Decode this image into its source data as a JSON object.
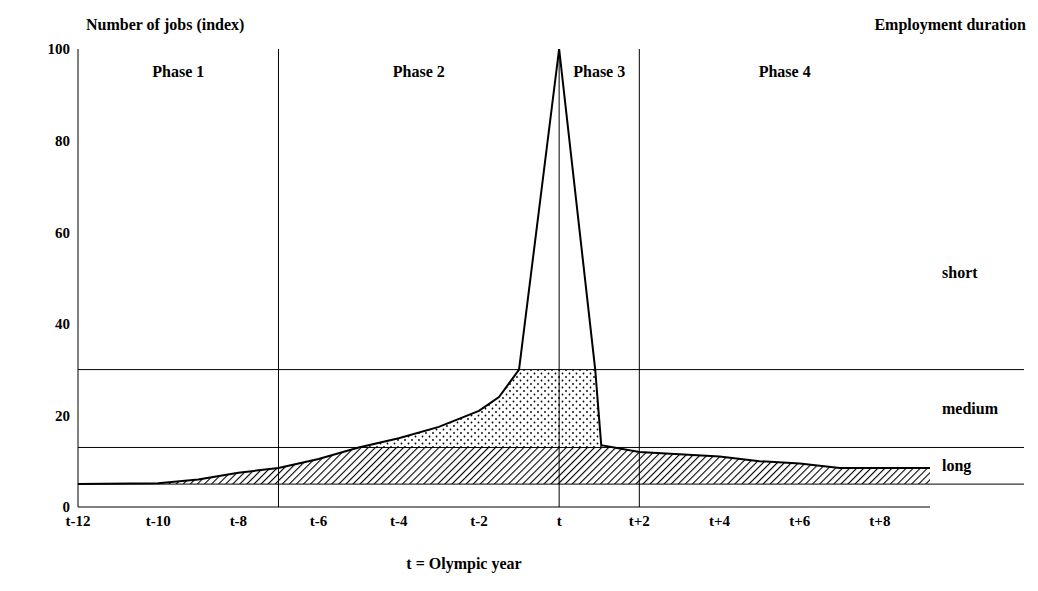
{
  "chart_data": {
    "type": "area",
    "y_label": "Number of jobs (index)",
    "x_label": "t = Olympic year",
    "band_title": "Employment duration",
    "color": "#000000",
    "x": [
      -12,
      -10,
      -9,
      -8,
      -7,
      -6,
      -5,
      -4,
      -3,
      -2,
      -1.5,
      -1,
      0,
      0.9,
      1.05,
      2,
      3,
      4,
      5,
      6,
      7,
      8,
      9.25
    ],
    "values": [
      5,
      5.2,
      6,
      7.5,
      8.5,
      10.5,
      13,
      15,
      17.5,
      21,
      24,
      30,
      100,
      30,
      13.5,
      12,
      11.5,
      11,
      10,
      9.5,
      8.5,
      8.5,
      8.5
    ],
    "xlim": [
      -12,
      9.25
    ],
    "xticks": [
      {
        "value": -12,
        "label": "t-12"
      },
      {
        "value": -10,
        "label": "t-10"
      },
      {
        "value": -8,
        "label": "t-8"
      },
      {
        "value": -6,
        "label": "t-6"
      },
      {
        "value": -4,
        "label": "t-4"
      },
      {
        "value": -2,
        "label": "t-2"
      },
      {
        "value": 0,
        "label": "t"
      },
      {
        "value": 2,
        "label": "t+2"
      },
      {
        "value": 4,
        "label": "t+4"
      },
      {
        "value": 6,
        "label": "t+6"
      },
      {
        "value": 8,
        "label": "t+8"
      }
    ],
    "ylim": [
      0,
      100
    ],
    "yticks": [
      0,
      20,
      40,
      60,
      80,
      100
    ],
    "bands": [
      {
        "name": "long",
        "from": 5,
        "to": 13
      },
      {
        "name": "medium",
        "from": 13,
        "to": 30
      },
      {
        "name": "short",
        "from": 30,
        "to": 100
      }
    ],
    "phases": [
      {
        "label": "Phase 1",
        "from": -12,
        "to": -7
      },
      {
        "label": "Phase 2",
        "from": -7,
        "to": 0
      },
      {
        "label": "Phase 3",
        "from": 0,
        "to": 2
      },
      {
        "label": "Phase 4",
        "from": 2,
        "to": 9.25
      }
    ]
  }
}
